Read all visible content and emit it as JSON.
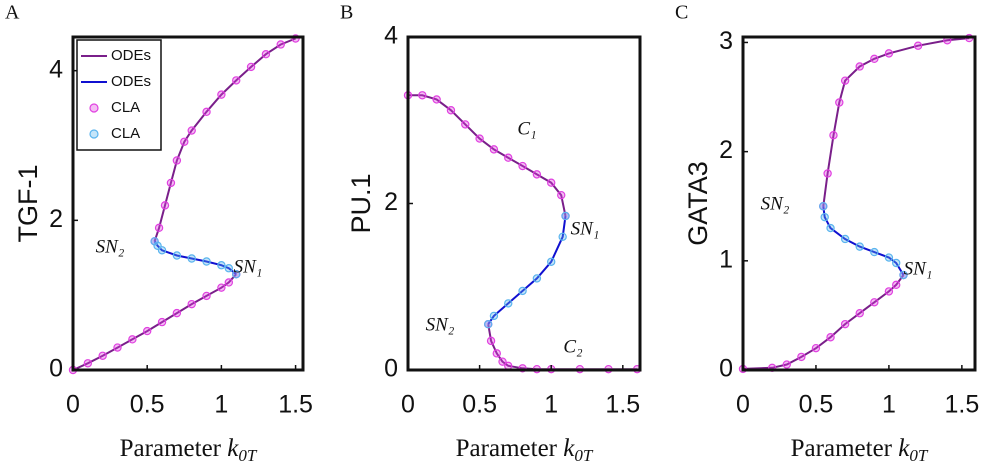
{
  "chart_data": [
    {
      "type": "line",
      "panel_label": "A",
      "ylabel": "TGF-1",
      "xlabel": "Parameter k0T",
      "xlim": [
        0,
        1.55
      ],
      "ylim": [
        0,
        4.45
      ],
      "xticks": [
        0,
        0.5,
        1,
        1.5
      ],
      "yticks": [
        0,
        2,
        4
      ],
      "legend": "upper left",
      "annotations": [
        "SN₂",
        "SN₁"
      ],
      "series": [
        {
          "name": "ODEs",
          "color": "#7a1f8a",
          "mode": "lines",
          "x": [
            0,
            0.1,
            0.2,
            0.3,
            0.4,
            0.5,
            0.6,
            0.7,
            0.8,
            0.9,
            1.0,
            1.05,
            1.1,
            null,
            0.55,
            0.58,
            0.62,
            0.66,
            0.7,
            0.75,
            0.8,
            0.9,
            1.0,
            1.1,
            1.2,
            1.3,
            1.4,
            1.5
          ],
          "values": [
            0,
            0.09,
            0.19,
            0.3,
            0.41,
            0.52,
            0.64,
            0.76,
            0.88,
            0.99,
            1.1,
            1.17,
            1.28,
            null,
            1.72,
            1.9,
            2.2,
            2.5,
            2.8,
            3.05,
            3.2,
            3.45,
            3.68,
            3.87,
            4.05,
            4.22,
            4.35,
            4.43
          ]
        },
        {
          "name": "ODEs",
          "color": "#1010d0",
          "mode": "lines",
          "x": [
            1.1,
            1.05,
            1.0,
            0.9,
            0.8,
            0.7,
            0.6,
            0.57,
            0.55
          ],
          "values": [
            1.28,
            1.36,
            1.4,
            1.45,
            1.49,
            1.53,
            1.6,
            1.66,
            1.72
          ]
        },
        {
          "name": "CLA",
          "color": "#e040e0",
          "mode": "markers",
          "x": [
            0,
            0.1,
            0.2,
            0.3,
            0.4,
            0.5,
            0.6,
            0.7,
            0.8,
            0.9,
            1.0,
            1.05,
            1.1,
            null,
            0.55,
            0.58,
            0.62,
            0.66,
            0.7,
            0.75,
            0.8,
            0.9,
            1.0,
            1.1,
            1.2,
            1.3,
            1.4,
            1.5
          ],
          "values": [
            0,
            0.09,
            0.19,
            0.3,
            0.41,
            0.52,
            0.64,
            0.76,
            0.88,
            0.99,
            1.1,
            1.17,
            1.28,
            null,
            1.72,
            1.9,
            2.2,
            2.5,
            2.8,
            3.05,
            3.2,
            3.45,
            3.68,
            3.87,
            4.05,
            4.22,
            4.35,
            4.43
          ]
        },
        {
          "name": "CLA",
          "color": "#5ab4ee",
          "mode": "markers",
          "x": [
            1.1,
            1.05,
            1.0,
            0.9,
            0.8,
            0.7,
            0.6,
            0.57,
            0.55
          ],
          "values": [
            1.28,
            1.36,
            1.4,
            1.45,
            1.49,
            1.53,
            1.6,
            1.66,
            1.72
          ]
        }
      ]
    },
    {
      "type": "line",
      "panel_label": "B",
      "ylabel": "PU.1",
      "xlabel": "Parameter k0T",
      "xlim": [
        0,
        1.62
      ],
      "ylim": [
        0,
        4
      ],
      "xticks": [
        0,
        0.5,
        1,
        1.5
      ],
      "yticks": [
        0,
        2,
        4
      ],
      "annotations": [
        "C₁",
        "SN₁",
        "SN₂",
        "C₂"
      ],
      "series": [
        {
          "color": "#7a1f8a",
          "mode": "lines",
          "x": [
            0,
            0.1,
            0.2,
            0.3,
            0.4,
            0.5,
            0.6,
            0.7,
            0.8,
            0.9,
            1.0,
            1.07,
            1.1,
            null,
            0.56,
            0.58,
            0.62,
            0.66,
            0.7,
            0.8,
            0.9,
            1.0,
            1.2,
            1.4,
            1.6
          ],
          "values": [
            3.3,
            3.3,
            3.25,
            3.12,
            2.95,
            2.78,
            2.65,
            2.55,
            2.45,
            2.35,
            2.25,
            2.1,
            1.85,
            null,
            0.55,
            0.35,
            0.2,
            0.1,
            0.05,
            0.02,
            0.01,
            0.01,
            0.01,
            0.01,
            0.01
          ]
        },
        {
          "color": "#1010d0",
          "mode": "lines",
          "x": [
            1.1,
            1.08,
            1.0,
            0.9,
            0.8,
            0.7,
            0.6,
            0.56
          ],
          "values": [
            1.85,
            1.6,
            1.3,
            1.1,
            0.95,
            0.8,
            0.65,
            0.55
          ]
        },
        {
          "color": "#e040e0",
          "mode": "markers",
          "x": [
            0,
            0.1,
            0.2,
            0.3,
            0.4,
            0.5,
            0.6,
            0.7,
            0.8,
            0.9,
            1.0,
            1.07,
            1.1,
            null,
            0.56,
            0.58,
            0.62,
            0.66,
            0.7,
            0.8,
            0.9,
            1.0,
            1.2,
            1.4,
            1.6
          ],
          "values": [
            3.3,
            3.3,
            3.25,
            3.12,
            2.95,
            2.78,
            2.65,
            2.55,
            2.45,
            2.35,
            2.25,
            2.1,
            1.85,
            null,
            0.55,
            0.35,
            0.2,
            0.1,
            0.05,
            0.02,
            0.01,
            0.01,
            0.01,
            0.01,
            0.01
          ]
        },
        {
          "color": "#5ab4ee",
          "mode": "markers",
          "x": [
            1.1,
            1.08,
            1.0,
            0.9,
            0.8,
            0.7,
            0.6,
            0.56
          ],
          "values": [
            1.85,
            1.6,
            1.3,
            1.1,
            0.95,
            0.8,
            0.65,
            0.55
          ]
        }
      ]
    },
    {
      "type": "line",
      "panel_label": "C",
      "ylabel": "GATA3",
      "xlabel": "Parameter k0T",
      "xlim": [
        0,
        1.59
      ],
      "ylim": [
        0,
        3.05
      ],
      "xticks": [
        0,
        0.5,
        1,
        1.5
      ],
      "yticks": [
        0,
        1,
        2,
        3
      ],
      "annotations": [
        "SN₂",
        "SN₁"
      ],
      "series": [
        {
          "color": "#7a1f8a",
          "mode": "lines",
          "x": [
            0,
            0.2,
            0.3,
            0.4,
            0.5,
            0.6,
            0.7,
            0.8,
            0.9,
            1.0,
            1.05,
            1.1,
            null,
            0.55,
            0.58,
            0.62,
            0.66,
            0.7,
            0.8,
            0.9,
            1.0,
            1.2,
            1.4,
            1.55
          ],
          "values": [
            0.01,
            0.02,
            0.05,
            0.12,
            0.2,
            0.3,
            0.42,
            0.52,
            0.62,
            0.72,
            0.78,
            0.87,
            null,
            1.5,
            1.8,
            2.15,
            2.45,
            2.65,
            2.78,
            2.85,
            2.9,
            2.97,
            3.02,
            3.04
          ]
        },
        {
          "color": "#1010d0",
          "mode": "lines",
          "x": [
            1.1,
            1.05,
            1.0,
            0.9,
            0.8,
            0.7,
            0.6,
            0.56,
            0.55
          ],
          "values": [
            0.87,
            0.98,
            1.03,
            1.08,
            1.13,
            1.2,
            1.3,
            1.4,
            1.5
          ]
        },
        {
          "color": "#e040e0",
          "mode": "markers",
          "x": [
            0,
            0.2,
            0.3,
            0.4,
            0.5,
            0.6,
            0.7,
            0.8,
            0.9,
            1.0,
            1.05,
            1.1,
            null,
            0.55,
            0.58,
            0.62,
            0.66,
            0.7,
            0.8,
            0.9,
            1.0,
            1.2,
            1.4,
            1.55
          ],
          "values": [
            0.01,
            0.02,
            0.05,
            0.12,
            0.2,
            0.3,
            0.42,
            0.52,
            0.62,
            0.72,
            0.78,
            0.87,
            null,
            1.5,
            1.8,
            2.15,
            2.45,
            2.65,
            2.78,
            2.85,
            2.9,
            2.97,
            3.02,
            3.04
          ]
        },
        {
          "color": "#5ab4ee",
          "mode": "markers",
          "x": [
            1.1,
            1.05,
            1.0,
            0.9,
            0.8,
            0.7,
            0.6,
            0.56,
            0.55
          ],
          "values": [
            0.87,
            0.98,
            1.03,
            1.08,
            1.13,
            1.2,
            1.3,
            1.4,
            1.5
          ]
        }
      ]
    }
  ]
}
